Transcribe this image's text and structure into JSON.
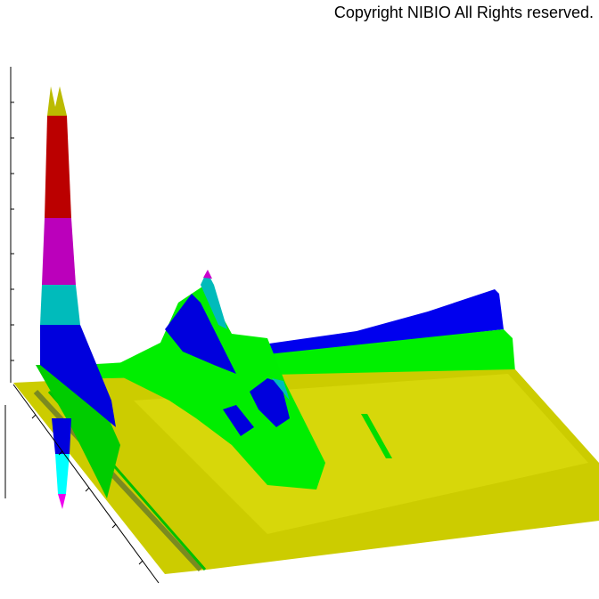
{
  "copyright": "Copyright NIBIO All Rights reserved."
}
